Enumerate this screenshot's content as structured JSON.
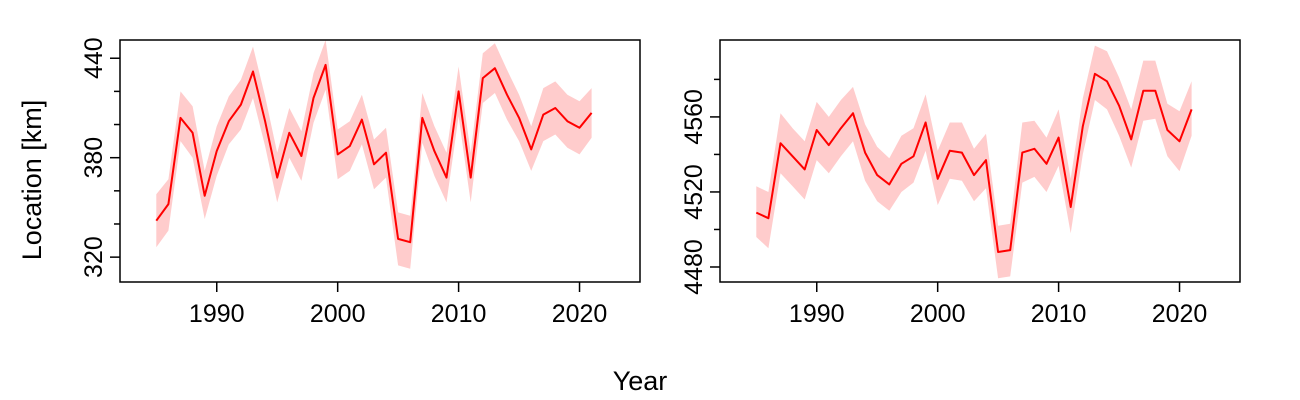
{
  "xlabel": "Year",
  "ylabel": "Location [km]",
  "colors": {
    "line": "#ff0000",
    "band": "#ffcccc",
    "frame": "#000000"
  },
  "chart_data": [
    {
      "type": "line",
      "xlim": [
        1982,
        2025
      ],
      "ylim": [
        305,
        451
      ],
      "x_ticks": [
        1990,
        2000,
        2010,
        2020
      ],
      "y_ticks": [
        320,
        380,
        440
      ],
      "y_minor_ticks": [
        340,
        360,
        400,
        420
      ],
      "series": [
        {
          "x": [
            1985,
            1986,
            1987,
            1988,
            1989,
            1990,
            1991,
            1992,
            1993,
            1994,
            1995,
            1996,
            1997,
            1998,
            1999,
            2000,
            2001,
            2002,
            2003,
            2004,
            2005,
            2006,
            2007,
            2008,
            2009,
            2010,
            2011,
            2012,
            2013,
            2014,
            2015,
            2016,
            2017,
            2018,
            2019,
            2020,
            2021
          ],
          "y": [
            342,
            352,
            404,
            395,
            357,
            384,
            402,
            412,
            432,
            402,
            368,
            395,
            381,
            416,
            436,
            382,
            387,
            403,
            376,
            383,
            331,
            329,
            404,
            384,
            368,
            420,
            368,
            428,
            434,
            418,
            404,
            385,
            406,
            410,
            402,
            398,
            407
          ],
          "lower": [
            326,
            336,
            390,
            380,
            343,
            369,
            388,
            397,
            416,
            387,
            353,
            380,
            366,
            401,
            421,
            367,
            372,
            388,
            361,
            368,
            315,
            313,
            389,
            369,
            353,
            405,
            353,
            413,
            419,
            403,
            390,
            372,
            390,
            394,
            386,
            382,
            392
          ],
          "upper": [
            358,
            367,
            420,
            411,
            372,
            399,
            417,
            427,
            447,
            417,
            383,
            410,
            396,
            431,
            451,
            397,
            402,
            418,
            391,
            398,
            347,
            345,
            419,
            399,
            383,
            435,
            383,
            443,
            449,
            433,
            418,
            399,
            422,
            426,
            418,
            414,
            422
          ]
        }
      ]
    },
    {
      "type": "line",
      "xlim": [
        1982,
        2025
      ],
      "ylim": [
        4472,
        4601
      ],
      "x_ticks": [
        1990,
        2000,
        2010,
        2020
      ],
      "y_ticks": [
        4480,
        4520,
        4560
      ],
      "y_minor_ticks": [
        4500,
        4540,
        4580
      ],
      "series": [
        {
          "x": [
            1985,
            1986,
            1987,
            1988,
            1989,
            1990,
            1991,
            1992,
            1993,
            1994,
            1995,
            1996,
            1997,
            1998,
            1999,
            2000,
            2001,
            2002,
            2003,
            2004,
            2005,
            2006,
            2007,
            2008,
            2009,
            2010,
            2011,
            2012,
            2013,
            2014,
            2015,
            2016,
            2017,
            2018,
            2019,
            2020,
            2021
          ],
          "y": [
            4509,
            4506,
            4546,
            4539,
            4532,
            4553,
            4545,
            4554,
            4562,
            4541,
            4529,
            4524,
            4535,
            4539,
            4557,
            4527,
            4542,
            4541,
            4529,
            4537,
            4488,
            4489,
            4541,
            4543,
            4535,
            4549,
            4512,
            4555,
            4583,
            4579,
            4566,
            4548,
            4574,
            4574,
            4553,
            4547,
            4564
          ],
          "lower": [
            4496,
            4490,
            4530,
            4523,
            4516,
            4537,
            4530,
            4539,
            4547,
            4526,
            4515,
            4510,
            4520,
            4525,
            4542,
            4513,
            4527,
            4526,
            4515,
            4522,
            4474,
            4475,
            4525,
            4528,
            4520,
            4534,
            4498,
            4540,
            4569,
            4564,
            4550,
            4533,
            4558,
            4559,
            4539,
            4531,
            4550
          ],
          "upper": [
            4523,
            4520,
            4562,
            4554,
            4547,
            4568,
            4560,
            4569,
            4576,
            4556,
            4544,
            4538,
            4550,
            4554,
            4572,
            4542,
            4557,
            4557,
            4543,
            4551,
            4502,
            4503,
            4557,
            4558,
            4549,
            4564,
            4527,
            4570,
            4598,
            4595,
            4581,
            4564,
            4590,
            4590,
            4567,
            4563,
            4579
          ]
        }
      ]
    }
  ]
}
